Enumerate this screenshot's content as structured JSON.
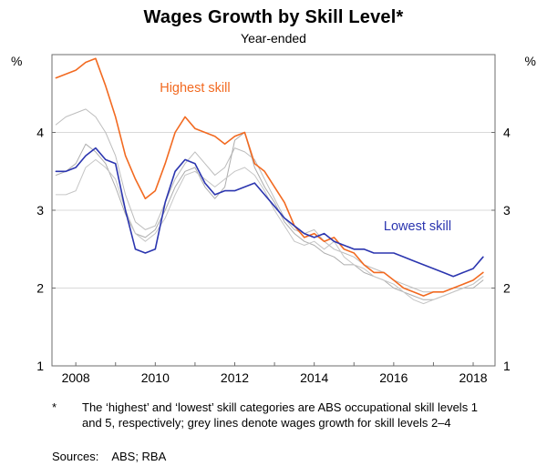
{
  "page": {
    "title": "Wages Growth by Skill Level*",
    "subtitle": "Year-ended"
  },
  "footnote": {
    "marker": "*",
    "text": "The ‘highest’ and ‘lowest’ skill categories are ABS occupational skill levels 1 and 5, respectively; grey lines denote wages growth for skill levels 2–4"
  },
  "sources": {
    "label": "Sources:",
    "value": "ABS; RBA"
  },
  "chart_data": {
    "type": "line",
    "title": "Wages Growth by Skill Level*",
    "subtitle": "Year-ended",
    "ylabel_unit": "%",
    "xlim": [
      2007.4,
      2018.55
    ],
    "ylim": [
      1,
      5
    ],
    "yticks": [
      1,
      2,
      3,
      4
    ],
    "xticks": [
      2008,
      2010,
      2012,
      2014,
      2016,
      2018
    ],
    "xticks_minor": [
      2008,
      2009,
      2010,
      2011,
      2012,
      2013,
      2014,
      2015,
      2016,
      2017,
      2018
    ],
    "grid": true,
    "grid_color": "#d9d9d9",
    "frame_color": "#6e6e6e",
    "x": [
      2007.5,
      2007.75,
      2008,
      2008.25,
      2008.5,
      2008.75,
      2009,
      2009.25,
      2009.5,
      2009.75,
      2010,
      2010.25,
      2010.5,
      2010.75,
      2011,
      2011.25,
      2011.5,
      2011.75,
      2012,
      2012.25,
      2012.5,
      2012.75,
      2013,
      2013.25,
      2013.5,
      2013.75,
      2014,
      2014.25,
      2014.5,
      2014.75,
      2015,
      2015.25,
      2015.5,
      2015.75,
      2016,
      2016.25,
      2016.5,
      2016.75,
      2017,
      2017.25,
      2017.5,
      2017.75,
      2018,
      2018.25
    ],
    "series": [
      {
        "id": "skill-2",
        "name": "Skill level 2 (grey)",
        "color": "#bdbdbd",
        "width": 1,
        "values": [
          4.1,
          4.2,
          4.25,
          4.3,
          4.2,
          4.0,
          3.7,
          3.2,
          2.85,
          2.75,
          2.8,
          3.1,
          3.4,
          3.6,
          3.75,
          3.6,
          3.45,
          3.55,
          3.8,
          3.75,
          3.65,
          3.4,
          3.15,
          2.9,
          2.75,
          2.7,
          2.75,
          2.6,
          2.5,
          2.45,
          2.4,
          2.3,
          2.25,
          2.2,
          2.1,
          2.05,
          2.0,
          1.95,
          1.95,
          1.95,
          2.0,
          2.0,
          2.05,
          2.15
        ]
      },
      {
        "id": "skill-3",
        "name": "Skill level 3 (grey)",
        "color": "#adadad",
        "width": 1,
        "values": [
          3.45,
          3.5,
          3.6,
          3.85,
          3.75,
          3.6,
          3.3,
          2.95,
          2.7,
          2.65,
          2.75,
          3.0,
          3.3,
          3.5,
          3.55,
          3.3,
          3.15,
          3.3,
          3.9,
          4.0,
          3.55,
          3.3,
          3.1,
          2.85,
          2.7,
          2.6,
          2.55,
          2.45,
          2.4,
          2.3,
          2.3,
          2.2,
          2.15,
          2.1,
          2.0,
          1.95,
          1.9,
          1.85,
          1.85,
          1.9,
          1.95,
          2.0,
          2.0,
          2.1
        ]
      },
      {
        "id": "skill-4",
        "name": "Skill level 4 (grey)",
        "color": "#c6c6c6",
        "width": 1,
        "values": [
          3.2,
          3.2,
          3.25,
          3.55,
          3.65,
          3.55,
          3.4,
          3.0,
          2.7,
          2.6,
          2.7,
          2.9,
          3.2,
          3.45,
          3.5,
          3.4,
          3.3,
          3.4,
          3.5,
          3.55,
          3.45,
          3.25,
          3.0,
          2.8,
          2.6,
          2.55,
          2.6,
          2.5,
          2.6,
          2.4,
          2.3,
          2.25,
          2.15,
          2.1,
          2.05,
          1.95,
          1.85,
          1.8,
          1.85,
          1.9,
          1.95,
          2.0,
          2.05,
          2.15
        ]
      },
      {
        "id": "highest",
        "name": "Highest skill",
        "color": "#f26a21",
        "width": 1.6,
        "values": [
          4.7,
          4.75,
          4.8,
          4.9,
          4.95,
          4.6,
          4.2,
          3.7,
          3.4,
          3.15,
          3.25,
          3.6,
          4.0,
          4.2,
          4.05,
          4.0,
          3.95,
          3.85,
          3.95,
          4.0,
          3.6,
          3.5,
          3.3,
          3.1,
          2.8,
          2.65,
          2.7,
          2.6,
          2.65,
          2.5,
          2.45,
          2.3,
          2.2,
          2.2,
          2.1,
          2.0,
          1.95,
          1.9,
          1.95,
          1.95,
          2.0,
          2.05,
          2.1,
          2.2
        ]
      },
      {
        "id": "lowest",
        "name": "Lowest skill",
        "color": "#2b35af",
        "width": 1.6,
        "values": [
          3.5,
          3.5,
          3.55,
          3.7,
          3.8,
          3.65,
          3.6,
          3.0,
          2.5,
          2.45,
          2.5,
          3.1,
          3.5,
          3.65,
          3.6,
          3.35,
          3.2,
          3.25,
          3.25,
          3.3,
          3.35,
          3.2,
          3.05,
          2.9,
          2.8,
          2.7,
          2.65,
          2.7,
          2.6,
          2.55,
          2.5,
          2.5,
          2.45,
          2.45,
          2.45,
          2.4,
          2.35,
          2.3,
          2.25,
          2.2,
          2.15,
          2.2,
          2.25,
          2.4
        ]
      }
    ],
    "annotations": [
      {
        "id": "highest",
        "text": "Highest skill",
        "x": 2011.0,
        "y": 4.52,
        "color": "#f26a21"
      },
      {
        "id": "lowest",
        "text": "Lowest skill",
        "x": 2016.6,
        "y": 2.74,
        "color": "#2b35af"
      }
    ]
  }
}
